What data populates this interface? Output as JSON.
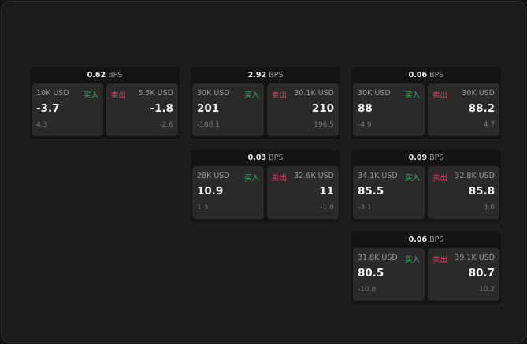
{
  "unit": "BPS",
  "buy_label": "买入",
  "sell_label": "卖出",
  "colors": {
    "buy": "#2fb36a",
    "sell": "#e0466e",
    "background": "#1c1c1c"
  },
  "cards": [
    {
      "spread": "0.62",
      "bid": {
        "size": "10K USD",
        "price": "-3.7",
        "change": "4.3"
      },
      "ask": {
        "size": "5.5K USD",
        "price": "-1.8",
        "change": "-2.6"
      }
    },
    {
      "spread": "2.92",
      "bid": {
        "size": "30K USD",
        "price": "201",
        "change": "-188.1"
      },
      "ask": {
        "size": "30.1K USD",
        "price": "210",
        "change": "196.5"
      }
    },
    {
      "spread": "0.06",
      "bid": {
        "size": "30K USD",
        "price": "88",
        "change": "-4.9"
      },
      "ask": {
        "size": "30K USD",
        "price": "88.2",
        "change": "4.7"
      }
    },
    {
      "spread": "0.03",
      "bid": {
        "size": "28K USD",
        "price": "10.9",
        "change": "1.3"
      },
      "ask": {
        "size": "32.6K USD",
        "price": "11",
        "change": "-1.8"
      }
    },
    {
      "spread": "0.09",
      "bid": {
        "size": "34.1K USD",
        "price": "85.5",
        "change": "-3.1"
      },
      "ask": {
        "size": "32.8K USD",
        "price": "85.8",
        "change": "3.0"
      }
    },
    {
      "spread": "0.06",
      "bid": {
        "size": "31.8K USD",
        "price": "80.5",
        "change": "-10.8"
      },
      "ask": {
        "size": "39.1K USD",
        "price": "80.7",
        "change": "10.2"
      }
    }
  ]
}
